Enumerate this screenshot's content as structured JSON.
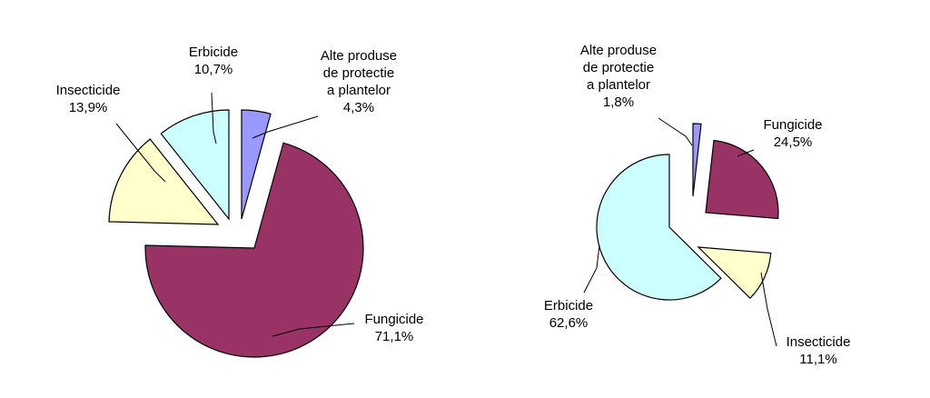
{
  "chart_data": [
    {
      "type": "pie",
      "title": "",
      "slices": [
        {
          "name_lines": [
            "Alte produse",
            "de protectie",
            "a plantelor"
          ],
          "value": 4.3,
          "value_label": "4,3%",
          "color": "#9999ff"
        },
        {
          "name_lines": [
            "Fungicide"
          ],
          "value": 71.1,
          "value_label": "71,1%",
          "color": "#993366"
        },
        {
          "name_lines": [
            "Insecticide"
          ],
          "value": 13.9,
          "value_label": "13,9%",
          "color": "#ffffcc"
        },
        {
          "name_lines": [
            "Erbicide"
          ],
          "value": 10.7,
          "value_label": "10,7%",
          "color": "#ccffff"
        }
      ]
    },
    {
      "type": "pie",
      "title": "",
      "slices": [
        {
          "name_lines": [
            "Alte produse",
            "de protectie",
            "a plantelor"
          ],
          "value": 1.8,
          "value_label": "1,8%",
          "color": "#9999ff"
        },
        {
          "name_lines": [
            "Fungicide"
          ],
          "value": 24.5,
          "value_label": "24,5%",
          "color": "#993366"
        },
        {
          "name_lines": [
            "Insecticide"
          ],
          "value": 11.1,
          "value_label": "11,1%",
          "color": "#ffffcc"
        },
        {
          "name_lines": [
            "Erbicide"
          ],
          "value": 62.6,
          "value_label": "62,6%",
          "color": "#ccffff"
        }
      ]
    }
  ]
}
